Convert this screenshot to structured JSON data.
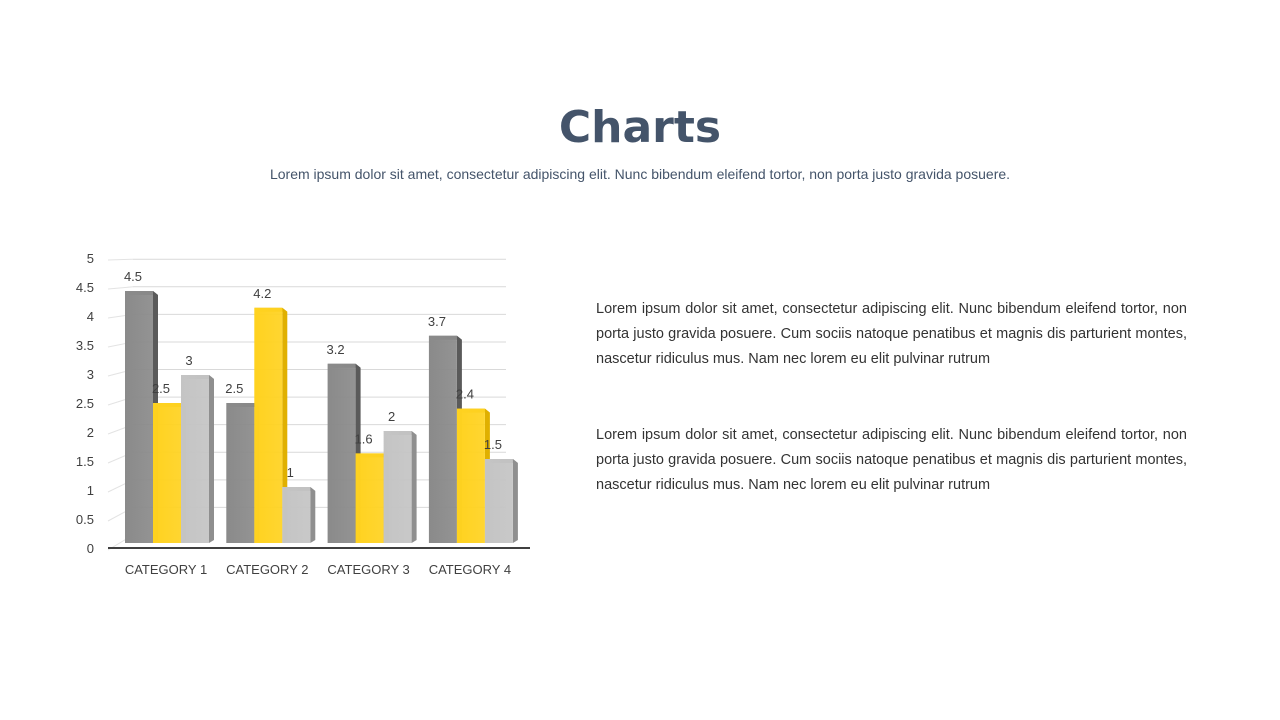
{
  "title": "Charts",
  "subtitle": "Lorem ipsum dolor sit amet, consectetur adipiscing elit. Nunc bibendum eleifend tortor, non porta justo gravida posuere.",
  "paragraphs": [
    "Lorem ipsum dolor sit amet, consectetur adipiscing elit. Nunc bibendum eleifend tortor, non porta justo gravida posuere. Cum sociis natoque penatibus et magnis dis parturient montes, nascetur ridiculus mus. Nam nec lorem eu elit pulvinar rutrum",
    "Lorem ipsum dolor sit amet, consectetur adipiscing elit. Nunc bibendum eleifend tortor, non porta justo gravida posuere. Cum sociis natoque penatibus et magnis dis parturient montes, nascetur ridiculus mus. Nam nec lorem eu elit pulvinar rutrum"
  ],
  "chart_data": {
    "type": "bar",
    "style": "3d-clustered",
    "categories": [
      "CATEGORY 1",
      "CATEGORY 2",
      "CATEGORY 3",
      "CATEGORY 4"
    ],
    "series": [
      {
        "values": [
          4.5,
          2.5,
          3.2,
          3.7
        ],
        "color": "#7f7f7f"
      },
      {
        "values": [
          2.5,
          4.2,
          1.6,
          2.4
        ],
        "color": "#ffd21f"
      },
      {
        "values": [
          3,
          1,
          2,
          1.5
        ],
        "color": "#bfbfbf"
      }
    ],
    "ylim": [
      0,
      5
    ],
    "yticks": [
      "0",
      "0.5",
      "1",
      "1.5",
      "2",
      "2.5",
      "3",
      "3.5",
      "4",
      "4.5",
      "5"
    ],
    "grid": true,
    "data_labels": true
  }
}
